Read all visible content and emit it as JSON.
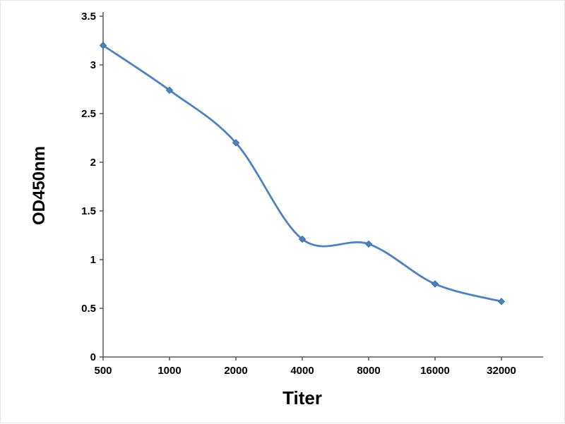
{
  "chart_data": {
    "type": "line",
    "title": "",
    "xlabel": "Titer",
    "ylabel": "OD450nm",
    "categories": [
      "500",
      "1000",
      "2000",
      "4000",
      "8000",
      "16000",
      "32000"
    ],
    "values": [
      3.2,
      2.74,
      2.2,
      1.21,
      1.16,
      0.75,
      0.57
    ],
    "ylim": [
      0,
      3.5
    ],
    "ytick_values": [
      0,
      0.5,
      1,
      1.5,
      2,
      2.5,
      3,
      3.5
    ],
    "ytick_labels": [
      "0",
      "0.5",
      "1",
      "1.5",
      "2",
      "2.5",
      "3",
      "3.5"
    ],
    "grid": false,
    "legend": "none",
    "line_style": "smooth",
    "line_color": "#4f81bd",
    "marker": "diamond",
    "marker_color": "#4f81bd",
    "marker_edge_color": "#3a6ea5",
    "axis_color": "#595959",
    "text_color": "#000000"
  }
}
